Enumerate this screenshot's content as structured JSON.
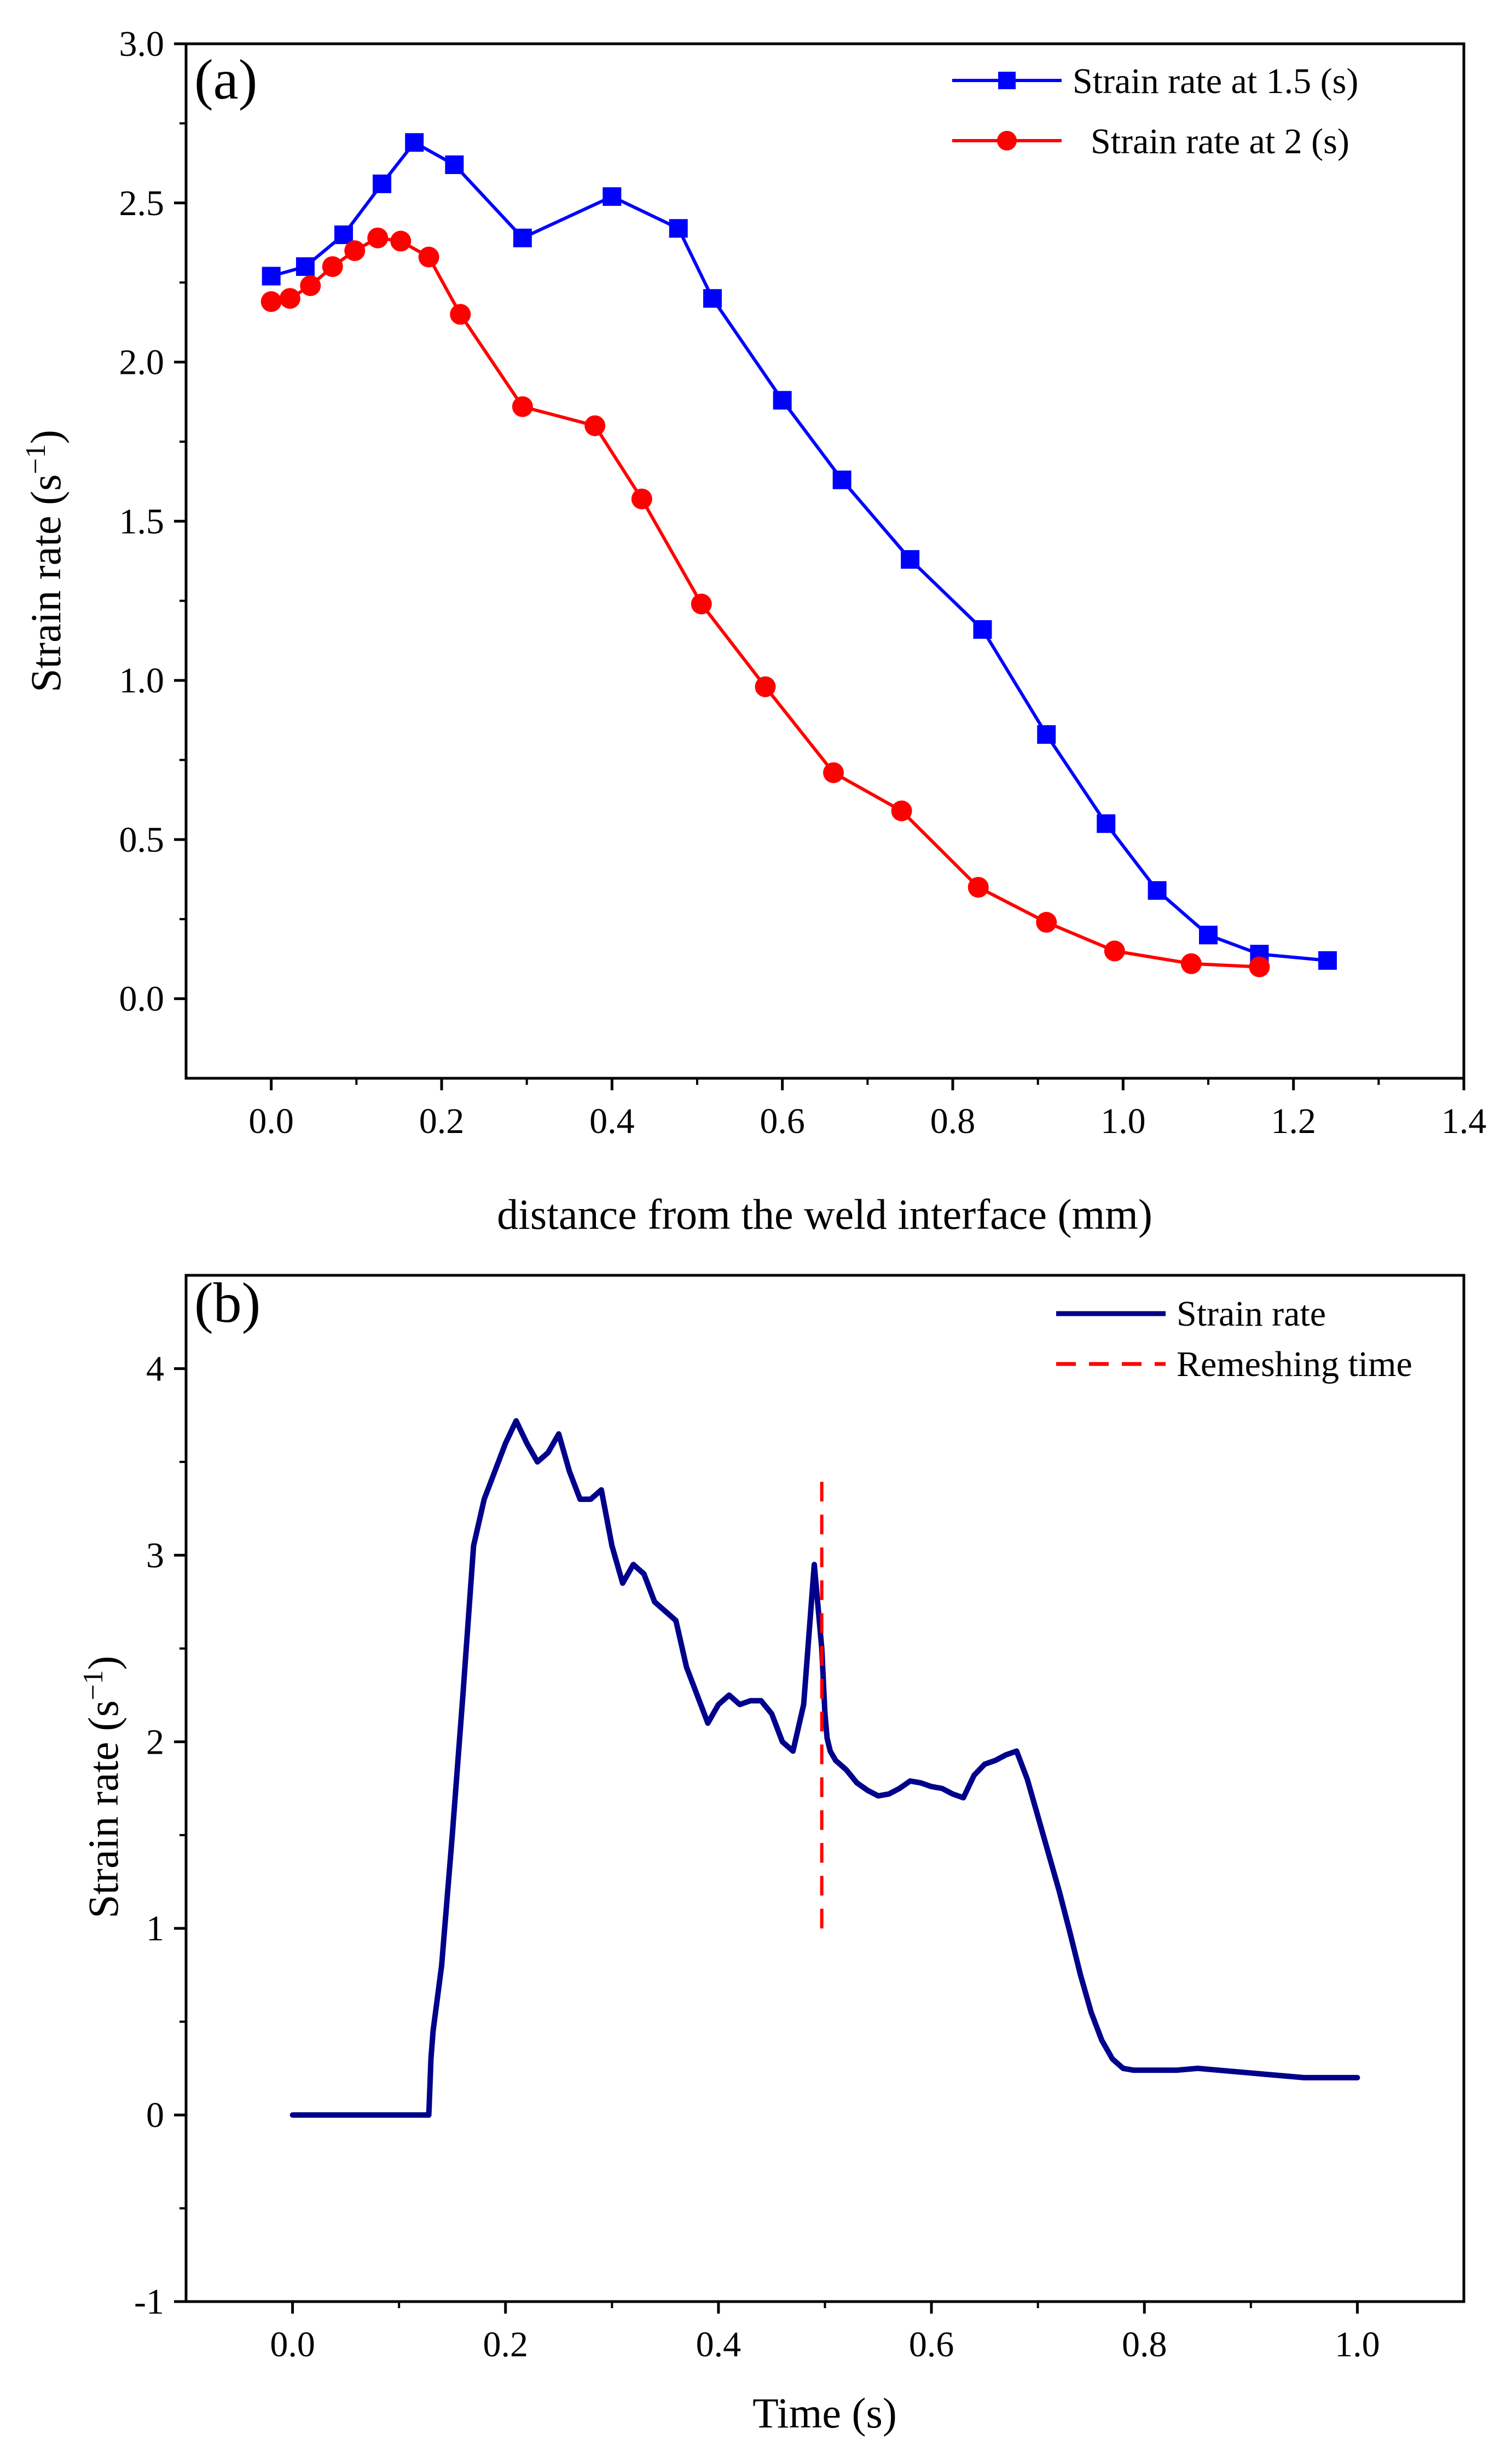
{
  "chart_data": [
    {
      "type": "line",
      "panel_label": "(a)",
      "title": "",
      "xlabel": "distance from the weld interface (mm)",
      "ylabel_main": "Strain rate (s",
      "ylabel_sup": "−1",
      "ylabel_close": ")",
      "xlim": [
        -0.1,
        1.4
      ],
      "ylim": [
        -0.25,
        3.0
      ],
      "xticks": [
        0.0,
        0.2,
        0.4,
        0.6,
        0.8,
        1.0,
        1.2,
        1.4
      ],
      "xtick_labels": [
        "0.0",
        "0.2",
        "0.4",
        "0.6",
        "0.8",
        "1.0",
        "1.2",
        "1.4"
      ],
      "yticks": [
        0.0,
        0.5,
        1.0,
        1.5,
        2.0,
        2.5,
        3.0
      ],
      "ytick_labels": [
        "0.0",
        "0.5",
        "1.0",
        "1.5",
        "2.0",
        "2.5",
        "3.0"
      ],
      "grid": false,
      "legend_position": "top-right",
      "series": [
        {
          "name": "Strain rate at 1.5 (s)",
          "color": "#0000ff",
          "marker": "square",
          "x": [
            0.0,
            0.04,
            0.085,
            0.13,
            0.168,
            0.215,
            0.295,
            0.4,
            0.478,
            0.518,
            0.6,
            0.67,
            0.75,
            0.835,
            0.91,
            0.98,
            1.04,
            1.1,
            1.16,
            1.24
          ],
          "y": [
            2.27,
            2.3,
            2.4,
            2.56,
            2.69,
            2.62,
            2.39,
            2.52,
            2.42,
            2.2,
            1.88,
            1.63,
            1.38,
            1.16,
            0.83,
            0.55,
            0.34,
            0.2,
            0.14,
            0.12
          ]
        },
        {
          "name": "Strain rate at 2 (s)",
          "color": "#ff0000",
          "marker": "circle",
          "x": [
            0.0,
            0.022,
            0.046,
            0.072,
            0.098,
            0.125,
            0.152,
            0.185,
            0.222,
            0.295,
            0.38,
            0.435,
            0.505,
            0.58,
            0.66,
            0.74,
            0.83,
            0.91,
            0.99,
            1.08,
            1.16
          ],
          "y": [
            2.19,
            2.2,
            2.24,
            2.3,
            2.35,
            2.39,
            2.38,
            2.33,
            2.15,
            1.86,
            1.8,
            1.57,
            1.24,
            0.98,
            0.71,
            0.59,
            0.35,
            0.24,
            0.15,
            0.11,
            0.1
          ]
        }
      ]
    },
    {
      "type": "line",
      "panel_label": "(b)",
      "title": "",
      "xlabel": "Time (s)",
      "ylabel_main": "Strain rate (s",
      "ylabel_sup": "−1",
      "ylabel_close": ")",
      "xlim": [
        -0.1,
        1.1
      ],
      "ylim": [
        -1,
        4.5
      ],
      "xticks": [
        0.0,
        0.2,
        0.4,
        0.6,
        0.8,
        1.0
      ],
      "xtick_labels": [
        "0.0",
        "0.2",
        "0.4",
        "0.6",
        "0.8",
        "1.0"
      ],
      "yticks": [
        -1,
        0,
        1,
        2,
        3,
        4
      ],
      "ytick_labels": [
        "-1",
        "0",
        "1",
        "2",
        "3",
        "4"
      ],
      "grid": false,
      "legend_position": "top-right",
      "series": [
        {
          "name": "Strain rate",
          "color": "#00008b",
          "style": "solid",
          "x": [
            0.0,
            0.128,
            0.13,
            0.132,
            0.14,
            0.15,
            0.16,
            0.17,
            0.18,
            0.19,
            0.2,
            0.21,
            0.22,
            0.23,
            0.24,
            0.25,
            0.26,
            0.27,
            0.28,
            0.29,
            0.3,
            0.31,
            0.32,
            0.33,
            0.34,
            0.35,
            0.36,
            0.37,
            0.38,
            0.39,
            0.4,
            0.41,
            0.42,
            0.43,
            0.44,
            0.45,
            0.46,
            0.47,
            0.48,
            0.49,
            0.497,
            0.5,
            0.502,
            0.505,
            0.51,
            0.52,
            0.53,
            0.54,
            0.55,
            0.56,
            0.57,
            0.58,
            0.59,
            0.6,
            0.61,
            0.62,
            0.63,
            0.64,
            0.65,
            0.66,
            0.67,
            0.68,
            0.69,
            0.7,
            0.71,
            0.72,
            0.73,
            0.74,
            0.75,
            0.76,
            0.77,
            0.78,
            0.79,
            0.8,
            0.81,
            0.82,
            0.83,
            0.85,
            0.87,
            0.89,
            0.91,
            0.93,
            0.95,
            0.97,
            1.0
          ],
          "y": [
            0.0,
            0.0,
            0.3,
            0.45,
            0.8,
            1.5,
            2.25,
            3.05,
            3.3,
            3.45,
            3.6,
            3.72,
            3.6,
            3.5,
            3.55,
            3.65,
            3.45,
            3.3,
            3.3,
            3.35,
            3.05,
            2.85,
            2.95,
            2.9,
            2.75,
            2.7,
            2.65,
            2.4,
            2.25,
            2.1,
            2.2,
            2.25,
            2.2,
            2.22,
            2.22,
            2.15,
            2.0,
            1.95,
            2.2,
            2.95,
            2.5,
            2.15,
            2.02,
            1.95,
            1.9,
            1.85,
            1.78,
            1.74,
            1.71,
            1.72,
            1.75,
            1.79,
            1.78,
            1.76,
            1.75,
            1.72,
            1.7,
            1.82,
            1.88,
            1.9,
            1.93,
            1.95,
            1.8,
            1.6,
            1.4,
            1.2,
            0.98,
            0.75,
            0.55,
            0.4,
            0.3,
            0.25,
            0.24,
            0.24,
            0.24,
            0.24,
            0.24,
            0.25,
            0.24,
            0.23,
            0.22,
            0.21,
            0.2,
            0.2,
            0.2
          ]
        },
        {
          "name": "Remeshing time",
          "color": "#ff0000",
          "style": "dashed",
          "x": [
            0.497,
            0.497
          ],
          "y": [
            1.0,
            3.4
          ]
        }
      ]
    }
  ]
}
